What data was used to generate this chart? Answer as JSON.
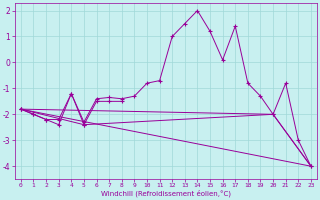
{
  "xlabel": "Windchill (Refroidissement éolien,°C)",
  "background_color": "#c8f0f0",
  "grid_color": "#a0d8d8",
  "line_color": "#990099",
  "ylim": [
    -4.5,
    2.3
  ],
  "xlim": [
    -0.5,
    23.5
  ],
  "yticks": [
    2,
    1,
    0,
    -1,
    -2,
    -3,
    -4
  ],
  "xticks": [
    0,
    1,
    2,
    3,
    4,
    5,
    6,
    7,
    8,
    9,
    10,
    11,
    12,
    13,
    14,
    15,
    16,
    17,
    18,
    19,
    20,
    21,
    22,
    23
  ],
  "series_main_x": [
    0,
    1,
    2,
    3,
    4,
    5,
    6,
    7,
    8,
    9,
    10,
    11,
    12,
    13,
    14,
    15,
    16,
    17,
    18,
    19,
    20,
    21,
    22,
    23
  ],
  "series_main_y": [
    -1.8,
    -2.0,
    -2.2,
    -2.2,
    -1.2,
    -2.3,
    -1.4,
    -1.35,
    -1.4,
    -1.3,
    -0.8,
    -0.7,
    1.0,
    1.5,
    2.0,
    1.2,
    0.1,
    1.4,
    -0.8,
    -1.3,
    -2.0,
    -0.8,
    -3.0,
    -4.0
  ],
  "series2_x": [
    0,
    1,
    2,
    3,
    4,
    5,
    6,
    7,
    8
  ],
  "series2_y": [
    -1.8,
    -2.0,
    -2.2,
    -2.4,
    -1.2,
    -2.4,
    -1.5,
    -1.5,
    -1.5
  ],
  "series3_x": [
    0,
    5,
    20,
    23
  ],
  "series3_y": [
    -1.8,
    -2.4,
    -2.0,
    -4.0
  ],
  "series4_x": [
    0,
    23
  ],
  "series4_y": [
    -1.8,
    -4.0
  ],
  "series5_x": [
    0,
    20,
    23
  ],
  "series5_y": [
    -1.8,
    -2.0,
    -4.0
  ]
}
